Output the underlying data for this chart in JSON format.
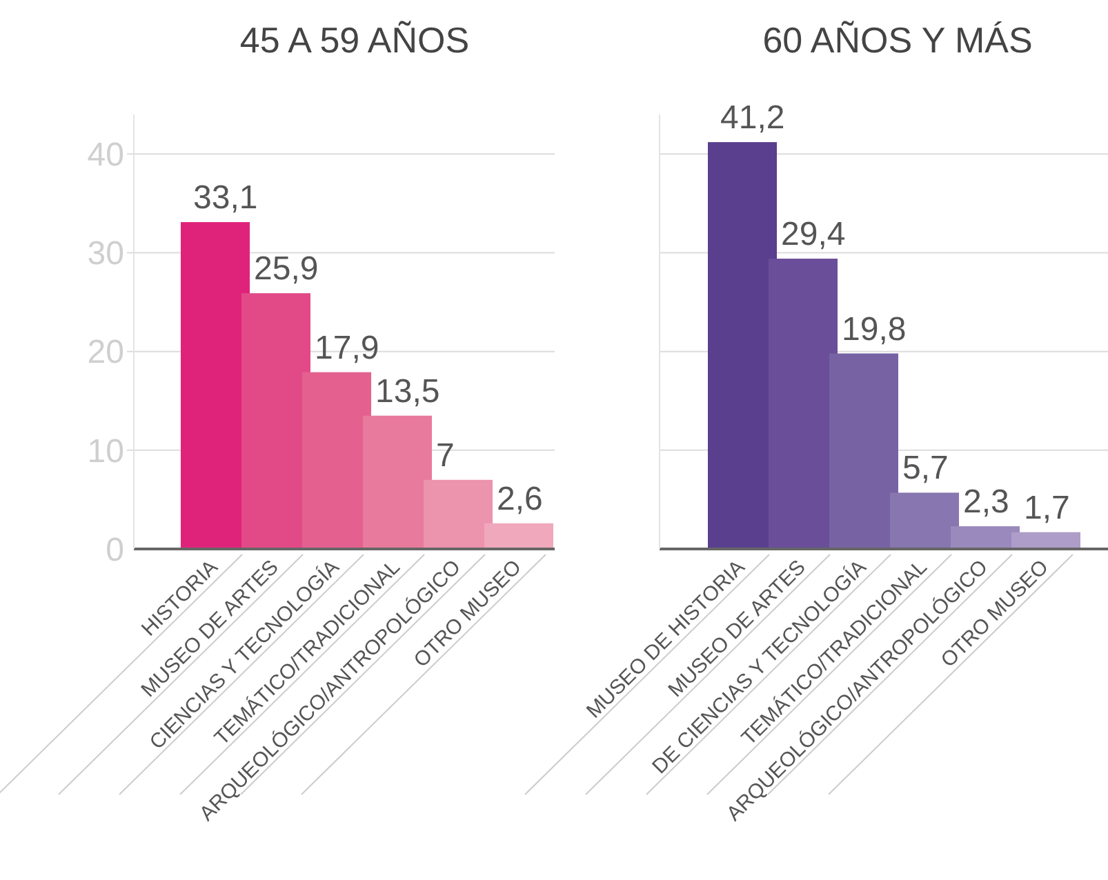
{
  "chart_data": [
    {
      "type": "bar",
      "title": "45 A 59 AÑOS",
      "categories": [
        "HISTORIA",
        "MUSEO DE ARTES",
        "CIENCIAS Y TECNOLOGÍA",
        "TEMÁTICO/TRADICIONAL",
        "ARQUEOLÓGICO/ANTROPOLÓGICO",
        "OTRO MUSEO"
      ],
      "values": [
        33.1,
        25.9,
        17.9,
        13.5,
        7,
        2.6
      ],
      "value_labels": [
        "33,1",
        "25,9",
        "17,9",
        "13,5",
        "7",
        "2,6"
      ],
      "colors": [
        "#e0237a",
        "#e24a87",
        "#e4608f",
        "#e87b9d",
        "#ec93ad",
        "#f0a8bc"
      ],
      "ylim": [
        0,
        44
      ],
      "yticks": [
        0,
        10,
        20,
        30,
        40
      ],
      "grid": "y"
    },
    {
      "type": "bar",
      "title": "60 AÑOS Y MÁS",
      "categories": [
        "MUSEO DE HISTORIA",
        "MUSEO DE ARTES",
        "DE CIENCIAS Y TECNOLOGÍA",
        "TEMÁTICO/TRADICIONAL",
        "ARQUEOLÓGICO/ANTROPOLÓGICO",
        "OTRO MUSEO"
      ],
      "values": [
        41.2,
        29.4,
        19.8,
        5.7,
        2.3,
        1.7
      ],
      "value_labels": [
        "41,2",
        "29,4",
        "19,8",
        "5,7",
        "2,3",
        "1,7"
      ],
      "colors": [
        "#5a3f8e",
        "#6a4e9a",
        "#7763a4",
        "#8776af",
        "#9a89bc",
        "#ad9dc8"
      ],
      "ylim": [
        0,
        44
      ],
      "yticks": [
        0,
        10,
        20,
        30,
        40
      ],
      "grid": "y",
      "tick_labels": "x"
    }
  ]
}
